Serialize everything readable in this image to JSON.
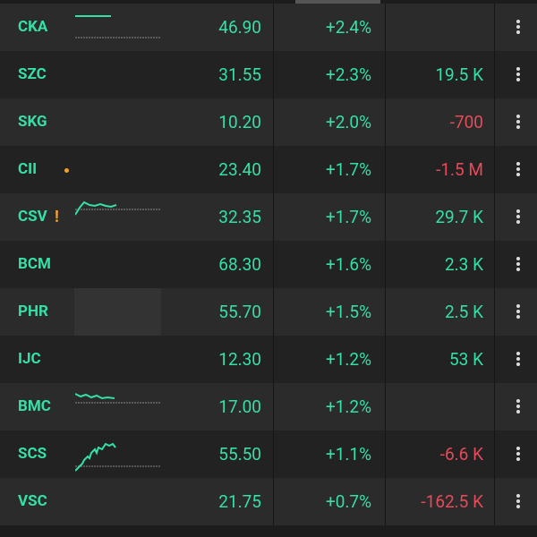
{
  "rows": [
    {
      "ticker": "CKA",
      "price": "46.90",
      "change": "+2.4%"
    },
    {
      "ticker": "SZC",
      "price": "31.55",
      "change": "+2.3%",
      "volume": "19.5 K"
    },
    {
      "ticker": "SKG",
      "price": "10.20",
      "change": "+2.0%",
      "volume": "-700"
    },
    {
      "ticker": "CII",
      "price": "23.40",
      "change": "+1.7%",
      "volume": "-1.5 M"
    },
    {
      "ticker": "CSV",
      "flag": "!",
      "price": "32.35",
      "change": "+1.7%",
      "volume": "29.7 K"
    },
    {
      "ticker": "BCM",
      "price": "68.30",
      "change": "+1.6%",
      "volume": "2.3 K"
    },
    {
      "ticker": "PHR",
      "price": "55.70",
      "change": "+1.5%",
      "volume": "2.5 K"
    },
    {
      "ticker": "IJC",
      "price": "12.30",
      "change": "+1.2%",
      "volume": "53 K"
    },
    {
      "ticker": "BMC",
      "price": "17.00",
      "change": "+1.2%"
    },
    {
      "ticker": "SCS",
      "price": "55.50",
      "change": "+1.1%",
      "volume": "-6.6 K"
    },
    {
      "ticker": "VSC",
      "price": "21.75",
      "change": "+0.7%",
      "volume": "-162.5 K"
    }
  ]
}
